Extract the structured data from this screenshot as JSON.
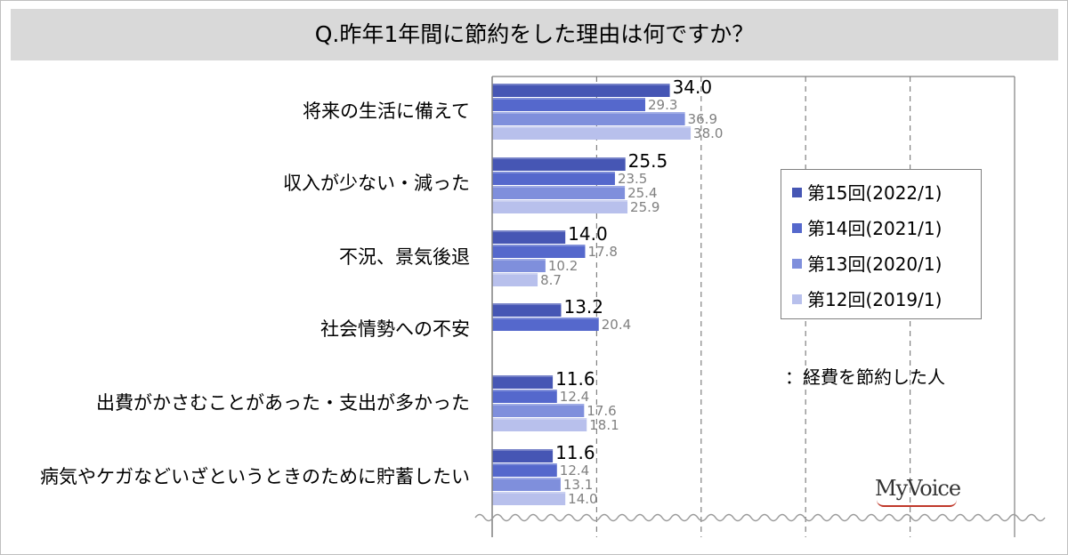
{
  "title": "Q.昨年1年間に節約をした理由は何ですか？",
  "note": "：経費を節約した人",
  "logo": "MyVoice",
  "colors": {
    "s2022": "#4656b4",
    "s2021": "#5568cc",
    "s2020": "#7f8fdc",
    "s2019": "#b8c0ec",
    "primary_label": "#000000",
    "secondary_label": "#808080"
  },
  "chart_data": {
    "type": "bar",
    "orientation": "horizontal",
    "xlim": [
      0,
      100
    ],
    "grid": "vertical dashed",
    "legend": "right",
    "categories": [
      "将来の生活に備えて",
      "収入が少ない・減った",
      "不況、景気後退",
      "社会情勢への不安",
      "出費がかさむことがあった・支出が多かった",
      "病気やケガなどいざというときのために貯蓄したい"
    ],
    "series": [
      {
        "name": "第15回(2022/1)",
        "values": [
          34.0,
          25.5,
          14.0,
          13.2,
          11.6,
          11.6
        ]
      },
      {
        "name": "第14回(2021/1)",
        "values": [
          29.3,
          23.5,
          17.8,
          20.4,
          12.4,
          12.4
        ]
      },
      {
        "name": "第13回(2020/1)",
        "values": [
          36.9,
          25.4,
          10.2,
          null,
          17.6,
          13.1
        ]
      },
      {
        "name": "第12回(2019/1)",
        "values": [
          38.0,
          25.9,
          8.7,
          null,
          18.1,
          14.0
        ]
      }
    ]
  }
}
